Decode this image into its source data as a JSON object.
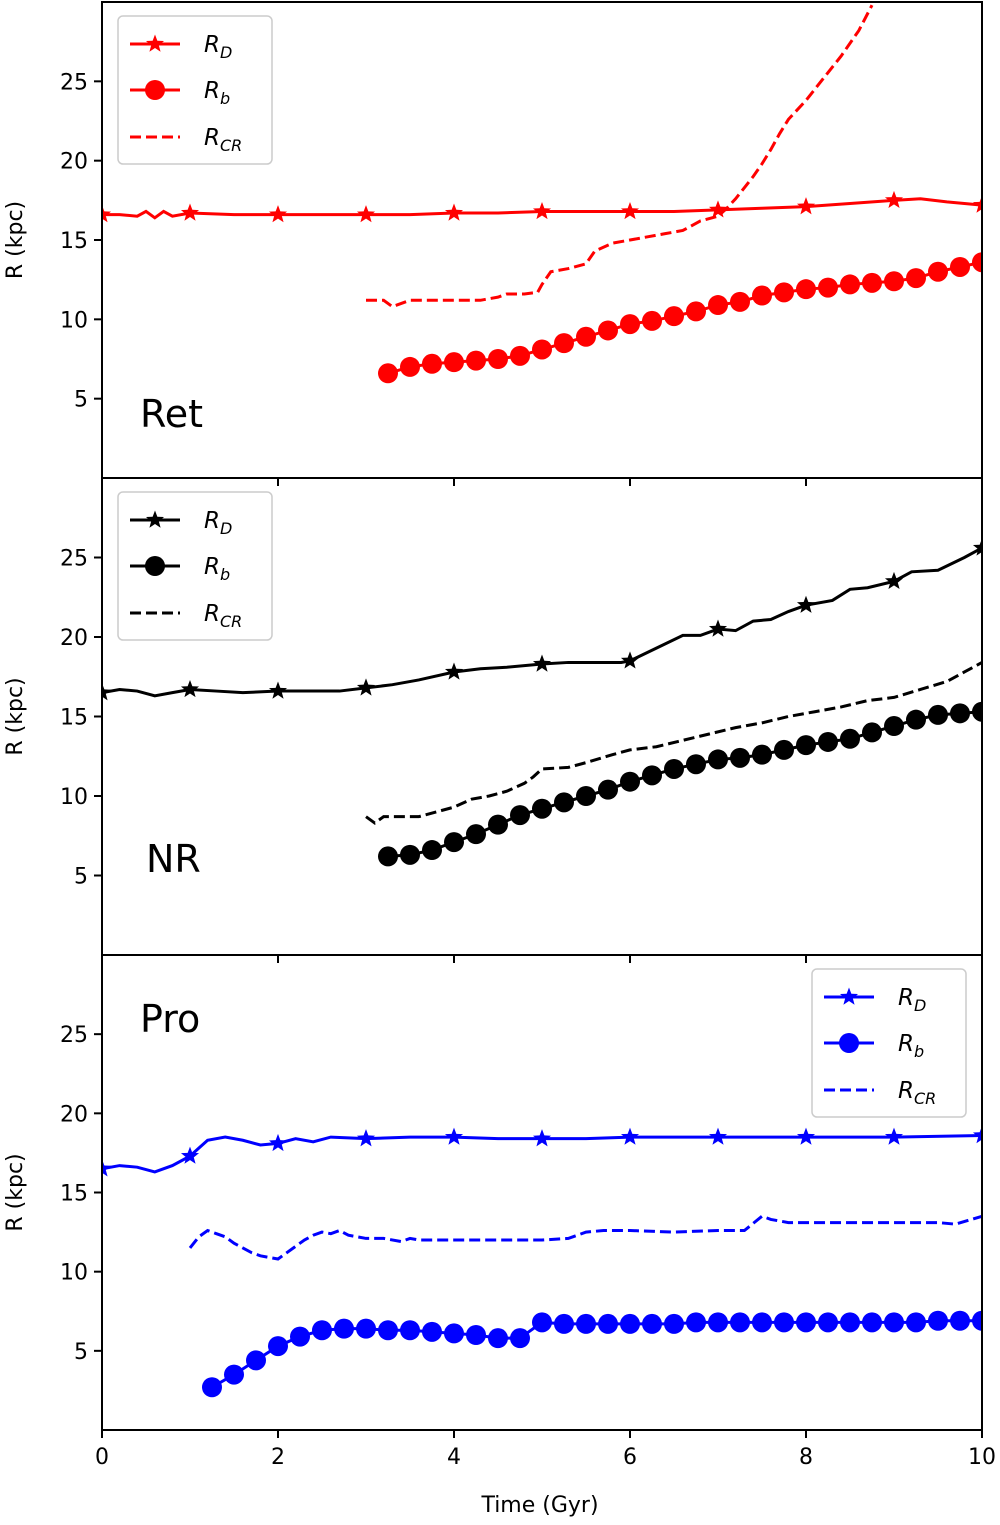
{
  "chart_data": {
    "type": "line",
    "xlabel": "Time (Gyr)",
    "xlim": [
      0,
      10
    ],
    "xticks": [
      0,
      2,
      4,
      6,
      8,
      10
    ],
    "ylabel": "R (kpc)",
    "ylim": [
      0,
      30
    ],
    "yticks": [
      5,
      10,
      15,
      20,
      25
    ],
    "legend_labels": [
      {
        "main": "R",
        "sub": "D"
      },
      {
        "main": "R",
        "sub": "b"
      },
      {
        "main": "R",
        "sub": "CR"
      }
    ],
    "panels": [
      {
        "label": "Ret",
        "color": "#ff0000",
        "legend_position": "upper-left",
        "series": [
          {
            "name": "R_D",
            "style": "solid-star",
            "x": [
              0,
              0.2,
              0.4,
              0.5,
              0.6,
              0.7,
              0.8,
              1.0,
              1.5,
              2.0,
              2.5,
              3.0,
              3.5,
              4.0,
              4.5,
              5.0,
              5.5,
              6.0,
              6.5,
              7.0,
              7.5,
              8.0,
              8.5,
              9.0,
              9.3,
              9.6,
              10.0
            ],
            "y": [
              16.6,
              16.6,
              16.5,
              16.8,
              16.4,
              16.8,
              16.5,
              16.7,
              16.6,
              16.6,
              16.6,
              16.6,
              16.6,
              16.7,
              16.7,
              16.8,
              16.8,
              16.8,
              16.8,
              16.9,
              17.0,
              17.1,
              17.3,
              17.5,
              17.6,
              17.4,
              17.2
            ],
            "marker_x": [
              0,
              1,
              2,
              3,
              4,
              5,
              6,
              7,
              8,
              9,
              10
            ]
          },
          {
            "name": "R_b",
            "style": "solid-circle",
            "x": [
              3.25,
              3.5,
              3.75,
              4.0,
              4.25,
              4.5,
              4.75,
              5.0,
              5.25,
              5.5,
              5.75,
              6.0,
              6.25,
              6.5,
              6.75,
              7.0,
              7.25,
              7.5,
              7.75,
              8.0,
              8.25,
              8.5,
              8.75,
              9.0,
              9.25,
              9.5,
              9.75,
              10.0
            ],
            "y": [
              6.6,
              7.0,
              7.2,
              7.3,
              7.4,
              7.5,
              7.7,
              8.1,
              8.5,
              8.9,
              9.3,
              9.7,
              9.9,
              10.2,
              10.5,
              10.9,
              11.1,
              11.5,
              11.7,
              11.9,
              12.0,
              12.2,
              12.3,
              12.4,
              12.6,
              13.0,
              13.3,
              13.6
            ]
          },
          {
            "name": "R_CR",
            "style": "dashed",
            "x": [
              3.0,
              3.2,
              3.3,
              3.5,
              3.7,
              4.0,
              4.3,
              4.5,
              4.6,
              4.8,
              4.95,
              5.0,
              5.1,
              5.3,
              5.5,
              5.6,
              5.8,
              6.0,
              6.2,
              6.4,
              6.6,
              6.8,
              7.0,
              7.1,
              7.2,
              7.3,
              7.4,
              7.5,
              7.6,
              7.7,
              7.8,
              8.0,
              8.2,
              8.4,
              8.6,
              8.75
            ],
            "y": [
              11.2,
              11.2,
              10.8,
              11.2,
              11.2,
              11.2,
              11.2,
              11.4,
              11.6,
              11.6,
              11.7,
              12.2,
              13.0,
              13.2,
              13.5,
              14.3,
              14.8,
              15.0,
              15.2,
              15.4,
              15.6,
              16.2,
              16.5,
              17.0,
              17.6,
              18.3,
              19.0,
              19.8,
              20.7,
              21.7,
              22.6,
              23.8,
              25.2,
              26.6,
              28.2,
              29.8
            ]
          }
        ]
      },
      {
        "label": "NR",
        "color": "#000000",
        "legend_position": "upper-left",
        "series": [
          {
            "name": "R_D",
            "style": "solid-star",
            "x": [
              0,
              0.2,
              0.4,
              0.6,
              0.8,
              1.0,
              1.3,
              1.6,
              2.0,
              2.4,
              2.7,
              3.0,
              3.3,
              3.6,
              4.0,
              4.3,
              4.6,
              5.0,
              5.3,
              5.6,
              5.9,
              6.0,
              6.3,
              6.6,
              6.8,
              7.0,
              7.2,
              7.4,
              7.6,
              7.8,
              8.0,
              8.3,
              8.5,
              8.7,
              9.0,
              9.2,
              9.5,
              9.8,
              10.0
            ],
            "y": [
              16.5,
              16.7,
              16.6,
              16.3,
              16.5,
              16.7,
              16.6,
              16.5,
              16.6,
              16.6,
              16.6,
              16.8,
              17.0,
              17.3,
              17.8,
              18.0,
              18.1,
              18.3,
              18.4,
              18.4,
              18.4,
              18.5,
              19.3,
              20.1,
              20.1,
              20.5,
              20.4,
              21.0,
              21.1,
              21.6,
              22.0,
              22.3,
              23.0,
              23.1,
              23.5,
              24.1,
              24.2,
              25.0,
              25.6
            ],
            "marker_x": [
              0,
              1,
              2,
              3,
              4,
              5,
              6,
              7,
              8,
              9,
              10
            ]
          },
          {
            "name": "R_b",
            "style": "solid-circle",
            "x": [
              3.25,
              3.5,
              3.75,
              4.0,
              4.25,
              4.5,
              4.75,
              5.0,
              5.25,
              5.5,
              5.75,
              6.0,
              6.25,
              6.5,
              6.75,
              7.0,
              7.25,
              7.5,
              7.75,
              8.0,
              8.25,
              8.5,
              8.75,
              9.0,
              9.25,
              9.5,
              9.75,
              10.0
            ],
            "y": [
              6.2,
              6.3,
              6.6,
              7.1,
              7.6,
              8.2,
              8.8,
              9.2,
              9.6,
              10.0,
              10.4,
              10.9,
              11.3,
              11.7,
              12.0,
              12.3,
              12.4,
              12.6,
              12.9,
              13.2,
              13.4,
              13.6,
              14.0,
              14.4,
              14.8,
              15.1,
              15.2,
              15.3
            ]
          },
          {
            "name": "R_CR",
            "style": "dashed",
            "x": [
              3.0,
              3.1,
              3.2,
              3.4,
              3.6,
              3.8,
              4.0,
              4.2,
              4.4,
              4.6,
              4.8,
              4.9,
              5.0,
              5.3,
              5.5,
              5.8,
              6.0,
              6.3,
              6.6,
              6.9,
              7.2,
              7.5,
              7.8,
              8.1,
              8.4,
              8.7,
              9.0,
              9.3,
              9.6,
              9.8,
              10.0
            ],
            "y": [
              8.7,
              8.3,
              8.7,
              8.7,
              8.7,
              9.0,
              9.3,
              9.8,
              10.0,
              10.3,
              10.8,
              11.2,
              11.7,
              11.8,
              12.1,
              12.6,
              12.9,
              13.1,
              13.5,
              13.9,
              14.3,
              14.6,
              15.0,
              15.3,
              15.6,
              16.0,
              16.2,
              16.7,
              17.2,
              17.8,
              18.4
            ]
          }
        ]
      },
      {
        "label": "Pro",
        "color": "#0000ff",
        "legend_position": "upper-right",
        "series": [
          {
            "name": "R_D",
            "style": "solid-star",
            "x": [
              0,
              0.2,
              0.4,
              0.6,
              0.8,
              1.0,
              1.1,
              1.2,
              1.4,
              1.6,
              1.8,
              2.0,
              2.2,
              2.4,
              2.6,
              3.0,
              3.5,
              4.0,
              4.5,
              5.0,
              5.5,
              6.0,
              7.0,
              8.0,
              9.0,
              10.0
            ],
            "y": [
              16.5,
              16.7,
              16.6,
              16.3,
              16.7,
              17.3,
              17.8,
              18.3,
              18.5,
              18.3,
              18.0,
              18.1,
              18.4,
              18.2,
              18.5,
              18.4,
              18.5,
              18.5,
              18.4,
              18.4,
              18.4,
              18.5,
              18.5,
              18.5,
              18.5,
              18.6
            ],
            "marker_x": [
              0,
              1,
              2,
              3,
              4,
              5,
              6,
              7,
              8,
              9,
              10
            ]
          },
          {
            "name": "R_b",
            "style": "solid-circle",
            "x": [
              1.25,
              1.5,
              1.75,
              2.0,
              2.25,
              2.5,
              2.75,
              3.0,
              3.25,
              3.5,
              3.75,
              4.0,
              4.25,
              4.5,
              4.75,
              5.0,
              5.25,
              5.5,
              5.75,
              6.0,
              6.25,
              6.5,
              6.75,
              7.0,
              7.25,
              7.5,
              7.75,
              8.0,
              8.25,
              8.5,
              8.75,
              9.0,
              9.25,
              9.5,
              9.75,
              10.0
            ],
            "y": [
              2.7,
              3.5,
              4.4,
              5.3,
              5.9,
              6.3,
              6.4,
              6.4,
              6.3,
              6.3,
              6.2,
              6.1,
              6.0,
              5.8,
              5.8,
              6.8,
              6.7,
              6.7,
              6.7,
              6.7,
              6.7,
              6.7,
              6.8,
              6.8,
              6.8,
              6.8,
              6.8,
              6.8,
              6.8,
              6.8,
              6.8,
              6.8,
              6.8,
              6.9,
              6.9,
              6.9
            ]
          },
          {
            "name": "R_CR",
            "style": "dashed",
            "x": [
              1.0,
              1.1,
              1.2,
              1.3,
              1.4,
              1.5,
              1.6,
              1.7,
              1.8,
              1.9,
              2.0,
              2.1,
              2.2,
              2.3,
              2.4,
              2.5,
              2.6,
              2.7,
              2.8,
              3.0,
              3.2,
              3.4,
              3.5,
              3.6,
              3.8,
              4.0,
              4.5,
              5.0,
              5.3,
              5.5,
              5.7,
              6.0,
              6.5,
              7.0,
              7.3,
              7.5,
              7.6,
              7.8,
              8.0,
              8.5,
              9.0,
              9.5,
              9.7,
              10.0
            ],
            "y": [
              11.5,
              12.2,
              12.6,
              12.4,
              12.2,
              11.8,
              11.5,
              11.2,
              11.0,
              10.9,
              10.8,
              11.2,
              11.6,
              12.0,
              12.3,
              12.5,
              12.4,
              12.6,
              12.3,
              12.1,
              12.1,
              11.9,
              12.1,
              12.0,
              12.0,
              12.0,
              12.0,
              12.0,
              12.1,
              12.5,
              12.6,
              12.6,
              12.5,
              12.6,
              12.6,
              13.5,
              13.3,
              13.1,
              13.1,
              13.1,
              13.1,
              13.1,
              13.0,
              13.5
            ]
          }
        ]
      }
    ]
  }
}
